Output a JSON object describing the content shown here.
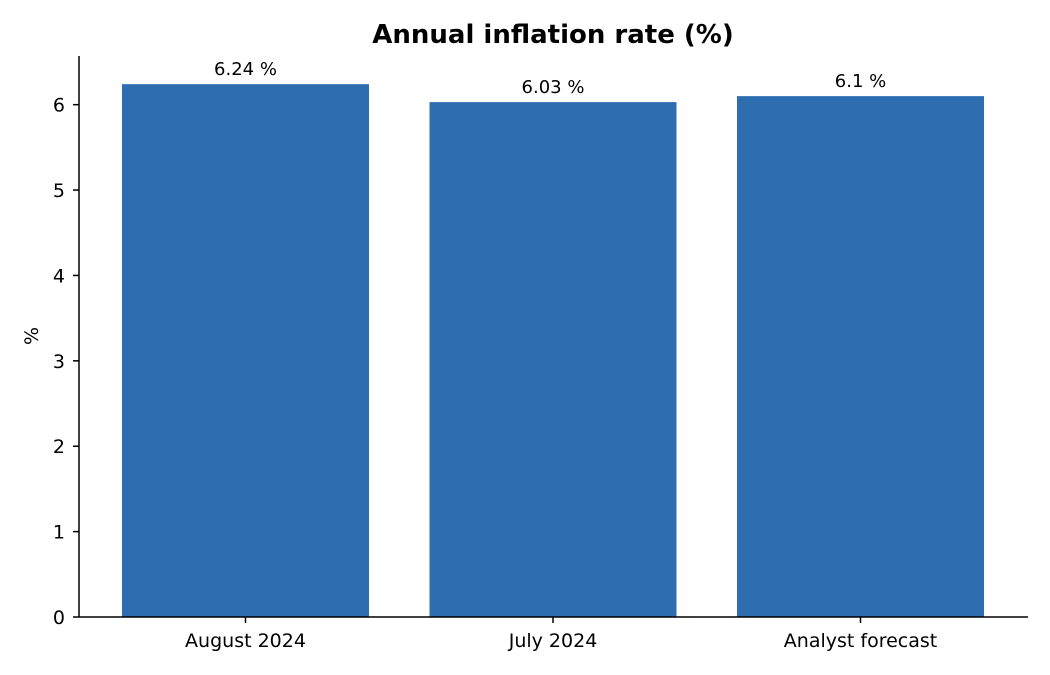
{
  "chart_data": {
    "type": "bar",
    "title": "Annual inflation rate (%)",
    "xlabel": "",
    "ylabel": "%",
    "categories": [
      "August 2024",
      "July 2024",
      "Analyst forecast"
    ],
    "values": [
      6.24,
      6.03,
      6.1
    ],
    "data_labels": [
      "6.24 %",
      "6.03 %",
      "6.1 %"
    ],
    "y_ticks": [
      0,
      1,
      2,
      3,
      4,
      5,
      6
    ],
    "ylim": [
      0,
      6.57
    ],
    "grid": false,
    "bar_color": "#2d6db0",
    "legend": "none"
  }
}
